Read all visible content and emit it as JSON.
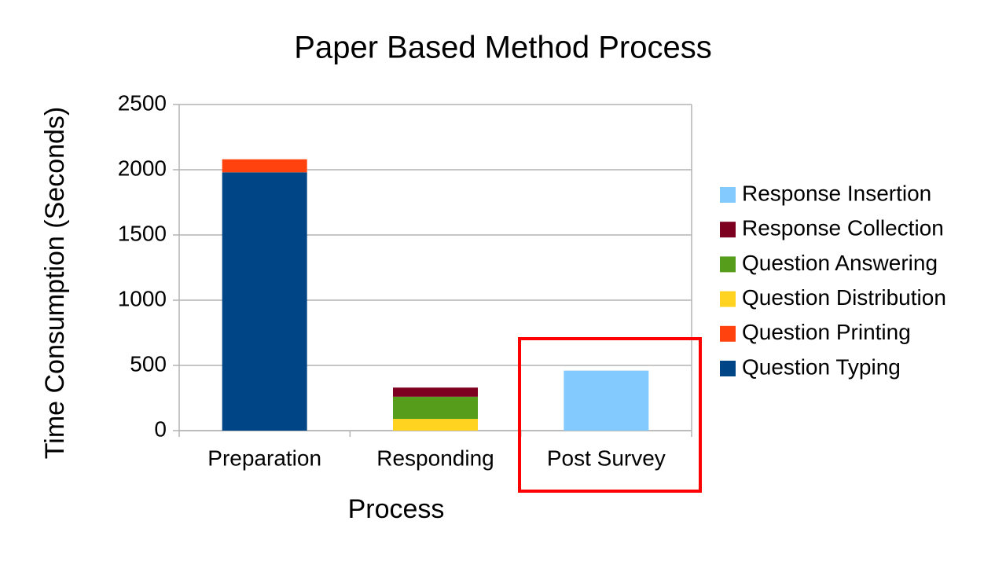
{
  "chart_data": {
    "type": "stacked_bar",
    "title": "Paper Based Method Process",
    "x_label": "Process",
    "y_label": "Time Consumption (Seconds)",
    "categories": [
      "Preparation",
      "Responding",
      "Post Survey"
    ],
    "series": [
      {
        "name": "Question Typing",
        "color": "#004586",
        "values": [
          1980,
          0,
          0
        ]
      },
      {
        "name": "Question Printing",
        "color": "#ff420e",
        "values": [
          100,
          0,
          0
        ]
      },
      {
        "name": "Question Distribution",
        "color": "#ffd320",
        "values": [
          0,
          90,
          0
        ]
      },
      {
        "name": "Question Answering",
        "color": "#579d1c",
        "values": [
          0,
          170,
          0
        ]
      },
      {
        "name": "Response Collection",
        "color": "#7e0021",
        "values": [
          0,
          70,
          0
        ]
      },
      {
        "name": "Response Insertion",
        "color": "#83caff",
        "values": [
          0,
          0,
          460
        ]
      }
    ],
    "ylim": [
      0,
      2500
    ],
    "yticks": [
      0,
      500,
      1000,
      1500,
      2000,
      2500
    ],
    "grid": true,
    "legend": "right"
  }
}
